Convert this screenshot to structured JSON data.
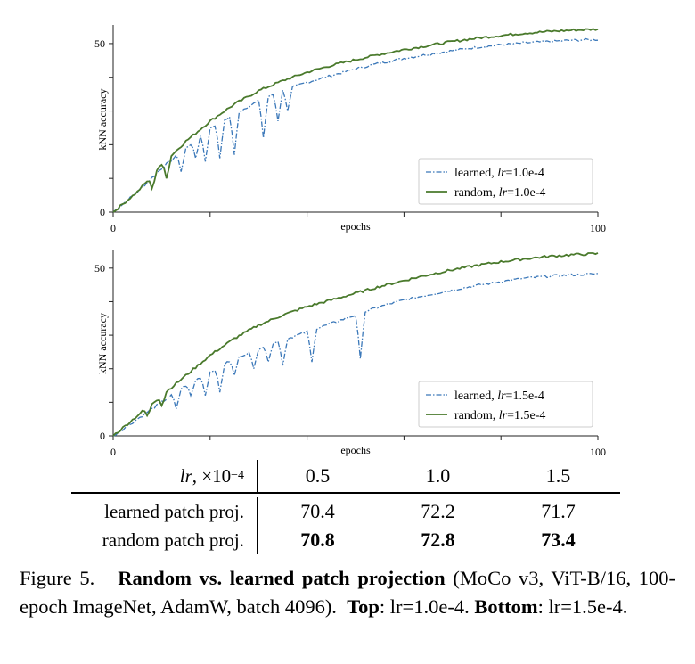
{
  "chart_data": [
    {
      "type": "line",
      "id": "top",
      "xlabel": "epochs",
      "ylabel": "kNN accuracy",
      "xlim": [
        0,
        100
      ],
      "ylim": [
        0,
        55
      ],
      "xticks": [
        "0",
        "100"
      ],
      "yticks": [
        "0",
        "50"
      ],
      "legend_position": "lower-right",
      "series": [
        {
          "name": "learned",
          "lr_label": "lr=1.0e-4",
          "style": "dash-dot",
          "color": "#3b78b9",
          "x": [
            0,
            5,
            10,
            15,
            20,
            25,
            30,
            35,
            40,
            45,
            50,
            55,
            60,
            65,
            70,
            75,
            80,
            85,
            90,
            95,
            100
          ],
          "y": [
            0,
            6,
            13,
            19,
            25,
            29,
            33,
            36,
            38.5,
            40.5,
            42.5,
            44.2,
            45.6,
            46.8,
            47.9,
            48.9,
            49.6,
            50.2,
            50.6,
            51,
            51.2
          ],
          "dips": [
            [
              14,
              12
            ],
            [
              17,
              16
            ],
            [
              19,
              15
            ],
            [
              22,
              16
            ],
            [
              25,
              17
            ],
            [
              31,
              22
            ],
            [
              34,
              27
            ],
            [
              36,
              30
            ]
          ]
        },
        {
          "name": "random",
          "lr_label": "lr=1.0e-4",
          "style": "solid",
          "color": "#4a7a2c",
          "x": [
            0,
            5,
            10,
            15,
            20,
            25,
            30,
            35,
            40,
            45,
            50,
            55,
            60,
            65,
            70,
            75,
            80,
            85,
            90,
            95,
            100
          ],
          "y": [
            0,
            6,
            14,
            21,
            27,
            32,
            36,
            39,
            41.5,
            43.5,
            45.2,
            46.8,
            48.2,
            49.4,
            50.6,
            51.6,
            52.4,
            53.1,
            53.6,
            54,
            54.3
          ],
          "dips": [
            [
              8,
              7
            ],
            [
              11,
              10
            ]
          ]
        }
      ]
    },
    {
      "type": "line",
      "id": "bottom",
      "xlabel": "epochs",
      "ylabel": "kNN accuracy",
      "xlim": [
        0,
        100
      ],
      "ylim": [
        0,
        55
      ],
      "xticks": [
        "0",
        "100"
      ],
      "yticks": [
        "0",
        "50"
      ],
      "legend_position": "lower-right",
      "series": [
        {
          "name": "learned",
          "lr_label": "lr=1.5e-4",
          "style": "dash-dot",
          "color": "#3b78b9",
          "x": [
            0,
            5,
            10,
            15,
            20,
            25,
            30,
            35,
            40,
            45,
            50,
            55,
            60,
            65,
            70,
            75,
            80,
            85,
            90,
            95,
            100
          ],
          "y": [
            0,
            5,
            10,
            15,
            19,
            23,
            26,
            28.5,
            31,
            33.5,
            36,
            38.5,
            40.5,
            42,
            43.5,
            44.8,
            46,
            47,
            47.6,
            48,
            48.3
          ],
          "dips": [
            [
              13,
              8
            ],
            [
              16,
              12
            ],
            [
              19,
              12
            ],
            [
              22,
              13
            ],
            [
              25,
              18
            ],
            [
              29,
              20
            ],
            [
              32,
              22
            ],
            [
              35,
              21
            ],
            [
              41,
              22
            ],
            [
              51,
              23
            ]
          ]
        },
        {
          "name": "random",
          "lr_label": "lr=1.5e-4",
          "style": "solid",
          "color": "#4a7a2c",
          "x": [
            0,
            5,
            10,
            15,
            20,
            25,
            30,
            35,
            40,
            45,
            50,
            55,
            60,
            65,
            70,
            75,
            80,
            85,
            90,
            95,
            100
          ],
          "y": [
            0,
            6,
            12,
            18,
            24,
            29,
            33,
            36,
            38.5,
            40.5,
            42.5,
            44.5,
            46.3,
            48,
            49.5,
            50.8,
            51.9,
            52.8,
            53.5,
            54,
            54.3
          ],
          "dips": [
            [
              7,
              6
            ],
            [
              10,
              9
            ]
          ]
        }
      ]
    }
  ],
  "table": {
    "header": {
      "lr": "lr",
      "unit": ", ×10",
      "exp": "−4",
      "cols": [
        "0.5",
        "1.0",
        "1.5"
      ]
    },
    "rows": [
      {
        "label": "learned patch proj.",
        "values": [
          "70.4",
          "72.2",
          "71.7"
        ],
        "bold": false
      },
      {
        "label": "random patch proj.",
        "values": [
          "70.8",
          "72.8",
          "73.4"
        ],
        "bold": true
      }
    ]
  },
  "caption": {
    "figure": "Figure 5.",
    "title": "Random vs. learned patch projection",
    "details": "(MoCo v3, ViT-B/16, 100-epoch ImageNet, AdamW, batch 4096).",
    "top_label": "Top",
    "top_value": "lr=1.0e-4.",
    "bottom_label": "Bottom",
    "bottom_value": "lr=1.5e-4."
  }
}
